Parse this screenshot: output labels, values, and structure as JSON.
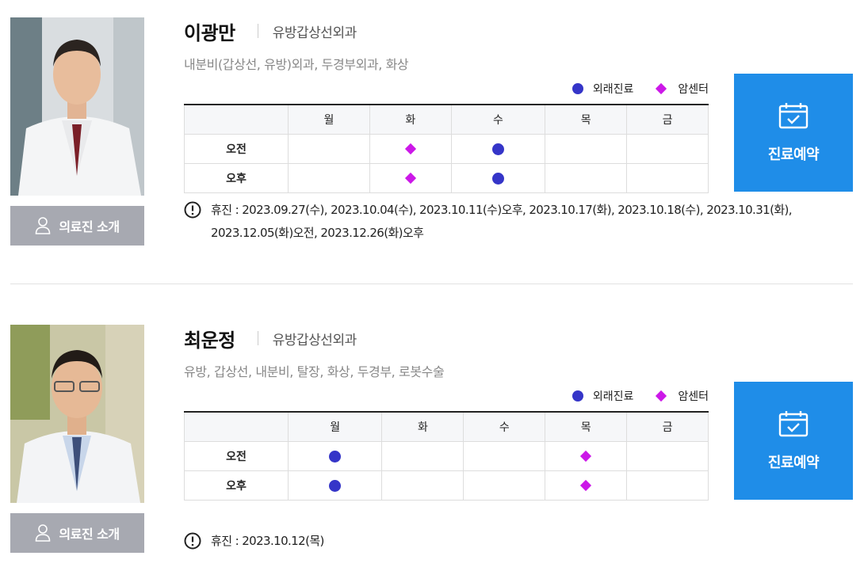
{
  "legend": {
    "outpatient": "외래진료",
    "cancer_center": "암센터"
  },
  "days": [
    "월",
    "화",
    "수",
    "목",
    "금"
  ],
  "periods": [
    "오전",
    "오후"
  ],
  "intro_label": "의료진 소개",
  "reserve_label": "진료예약",
  "colors": {
    "outpatient": "#3535c8",
    "cancer_center": "#cc18e8",
    "reserve_bg": "#1f8de8",
    "intro_bg": "#a7a9b1"
  },
  "doctors": [
    {
      "name": "이광만",
      "department": "유방갑상선외과",
      "specialty": "내분비(갑상선, 유방)외과, 두경부외과, 화상",
      "schedule": {
        "am": [
          "",
          "cancer_center",
          "outpatient",
          "",
          ""
        ],
        "pm": [
          "",
          "cancer_center",
          "outpatient",
          "",
          ""
        ]
      },
      "holiday": "휴진 : 2023.09.27(수), 2023.10.04(수), 2023.10.11(수)오후, 2023.10.17(화), 2023.10.18(수), 2023.10.31(화), 2023.12.05(화)오전, 2023.12.26(화)오후"
    },
    {
      "name": "최운정",
      "department": "유방갑상선외과",
      "specialty": "유방, 갑상선, 내분비, 탈장, 화상, 두경부, 로봇수술",
      "schedule": {
        "am": [
          "outpatient",
          "",
          "",
          "cancer_center",
          ""
        ],
        "pm": [
          "outpatient",
          "",
          "",
          "cancer_center",
          ""
        ]
      },
      "holiday": "휴진 : 2023.10.12(목)"
    }
  ]
}
